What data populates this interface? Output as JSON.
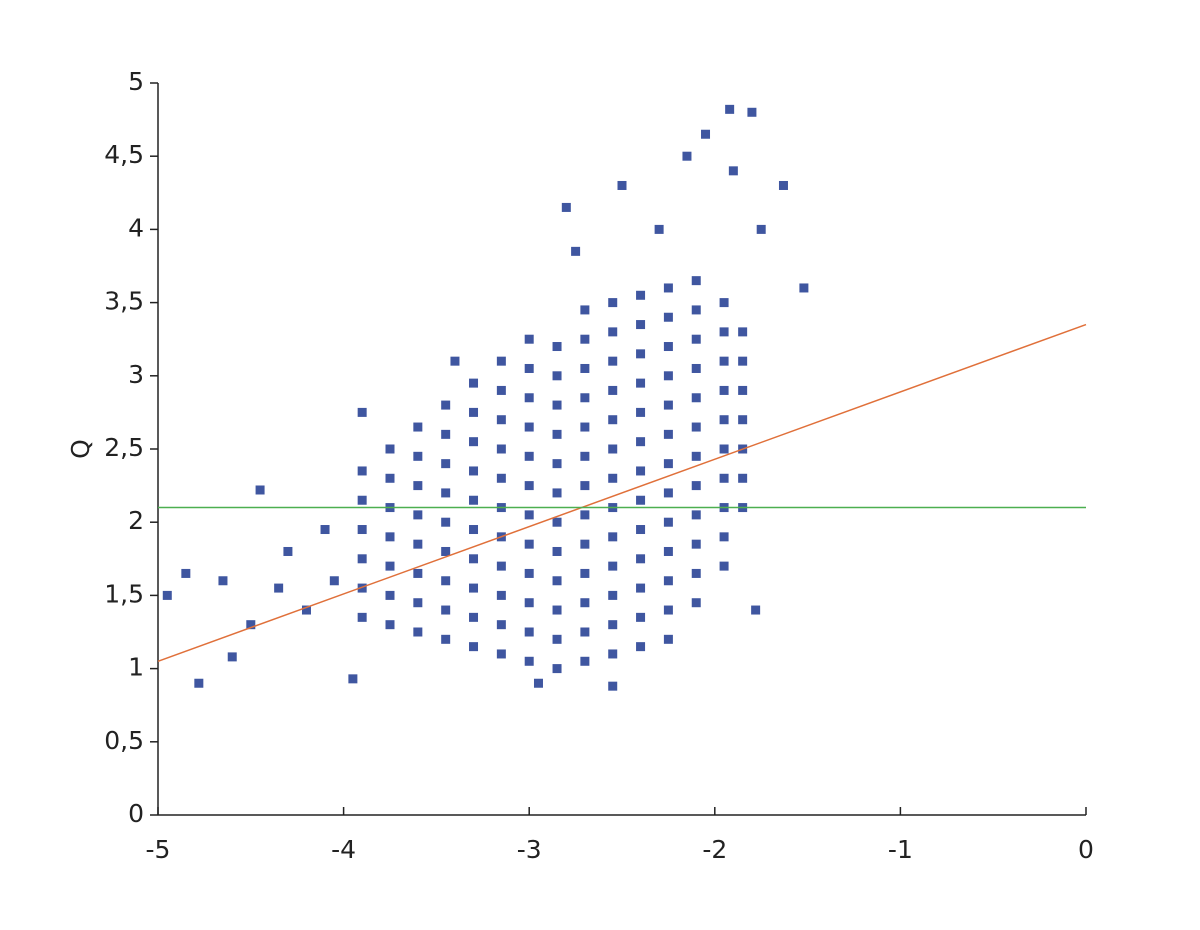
{
  "chart_data": {
    "type": "scatter",
    "y_label": "Q",
    "xlim": [
      -5,
      0
    ],
    "xticks": [
      -5,
      -4,
      -3,
      -2,
      -1,
      0
    ],
    "ylim": [
      0,
      5
    ],
    "yticks": [
      0,
      {
        "value": 0.5,
        "label": "0,5"
      },
      1,
      {
        "value": 1.5,
        "label": "1,5"
      },
      2,
      {
        "value": 2.5,
        "label": "2,5"
      },
      3,
      {
        "value": 3.5,
        "label": "3,5"
      },
      4,
      {
        "value": 4.5,
        "label": "4,5"
      },
      5
    ],
    "series": [
      {
        "type": "scatter",
        "color": "#3f56a0",
        "x": [
          -3.9,
          -3.9,
          -3.9,
          -3.9,
          -3.9,
          -3.9,
          -3.75,
          -3.75,
          -3.75,
          -3.75,
          -3.75,
          -3.75,
          -3.75,
          -3.6,
          -3.6,
          -3.6,
          -3.6,
          -3.6,
          -3.6,
          -3.6,
          -3.6,
          -3.45,
          -3.45,
          -3.45,
          -3.45,
          -3.45,
          -3.45,
          -3.45,
          -3.45,
          -3.45,
          -3.3,
          -3.3,
          -3.3,
          -3.3,
          -3.3,
          -3.3,
          -3.3,
          -3.3,
          -3.3,
          -3.3,
          -3.15,
          -3.15,
          -3.15,
          -3.15,
          -3.15,
          -3.15,
          -3.15,
          -3.15,
          -3.15,
          -3.15,
          -3.15,
          -3.0,
          -3.0,
          -3.0,
          -3.0,
          -3.0,
          -3.0,
          -3.0,
          -3.0,
          -3.0,
          -3.0,
          -3.0,
          -3.0,
          -2.85,
          -2.85,
          -2.85,
          -2.85,
          -2.85,
          -2.85,
          -2.85,
          -2.85,
          -2.85,
          -2.85,
          -2.85,
          -2.85,
          -2.7,
          -2.7,
          -2.7,
          -2.7,
          -2.7,
          -2.7,
          -2.7,
          -2.7,
          -2.7,
          -2.7,
          -2.7,
          -2.7,
          -2.7,
          -2.55,
          -2.55,
          -2.55,
          -2.55,
          -2.55,
          -2.55,
          -2.55,
          -2.55,
          -2.55,
          -2.55,
          -2.55,
          -2.55,
          -2.55,
          -2.4,
          -2.4,
          -2.4,
          -2.4,
          -2.4,
          -2.4,
          -2.4,
          -2.4,
          -2.4,
          -2.4,
          -2.4,
          -2.4,
          -2.4,
          -2.25,
          -2.25,
          -2.25,
          -2.25,
          -2.25,
          -2.25,
          -2.25,
          -2.25,
          -2.25,
          -2.25,
          -2.25,
          -2.25,
          -2.25,
          -2.1,
          -2.1,
          -2.1,
          -2.1,
          -2.1,
          -2.1,
          -2.1,
          -2.1,
          -2.1,
          -2.1,
          -2.1,
          -2.1,
          -1.95,
          -1.95,
          -1.95,
          -1.95,
          -1.95,
          -1.95,
          -1.95,
          -1.95,
          -1.95,
          -1.95,
          -1.85,
          -1.85,
          -1.85,
          -1.85,
          -1.85,
          -1.85,
          -1.85,
          -4.95,
          -4.85,
          -4.78,
          -4.6,
          -4.45,
          -4.3,
          -4.2,
          -4.5,
          -4.1,
          -3.95,
          -3.9,
          -3.4,
          -2.95,
          -2.55,
          -2.8,
          -2.5,
          -2.15,
          -2.05,
          -1.92,
          -1.8,
          -1.9,
          -1.63,
          -1.52,
          -1.78,
          -4.65,
          -4.35,
          -4.05,
          -2.75,
          -2.3,
          -1.75
        ],
        "values": [
          1.35,
          1.55,
          1.75,
          1.95,
          2.15,
          2.35,
          1.3,
          1.5,
          1.7,
          1.9,
          2.1,
          2.3,
          2.5,
          1.25,
          1.45,
          1.65,
          1.85,
          2.05,
          2.25,
          2.45,
          2.65,
          1.2,
          1.4,
          1.6,
          1.8,
          2.0,
          2.2,
          2.4,
          2.6,
          2.8,
          1.15,
          1.35,
          1.55,
          1.75,
          1.95,
          2.15,
          2.35,
          2.55,
          2.75,
          2.95,
          1.1,
          1.3,
          1.5,
          1.7,
          1.9,
          2.1,
          2.3,
          2.5,
          2.7,
          2.9,
          3.1,
          1.05,
          1.25,
          1.45,
          1.65,
          1.85,
          2.05,
          2.25,
          2.45,
          2.65,
          2.85,
          3.05,
          3.25,
          1.0,
          1.2,
          1.4,
          1.6,
          1.8,
          2.0,
          2.2,
          2.4,
          2.6,
          2.8,
          3.0,
          3.2,
          1.05,
          1.25,
          1.45,
          1.65,
          1.85,
          2.05,
          2.25,
          2.45,
          2.65,
          2.85,
          3.05,
          3.25,
          3.45,
          1.1,
          1.3,
          1.5,
          1.7,
          1.9,
          2.1,
          2.3,
          2.5,
          2.7,
          2.9,
          3.1,
          3.3,
          3.5,
          1.15,
          1.35,
          1.55,
          1.75,
          1.95,
          2.15,
          2.35,
          2.55,
          2.75,
          2.95,
          3.15,
          3.35,
          3.55,
          1.2,
          1.4,
          1.6,
          1.8,
          2.0,
          2.2,
          2.4,
          2.6,
          2.8,
          3.0,
          3.2,
          3.4,
          3.6,
          1.45,
          1.65,
          1.85,
          2.05,
          2.25,
          2.45,
          2.65,
          2.85,
          3.05,
          3.25,
          3.45,
          3.65,
          1.7,
          1.9,
          2.1,
          2.3,
          2.5,
          2.7,
          2.9,
          3.1,
          3.3,
          3.5,
          2.1,
          2.3,
          2.5,
          2.7,
          2.9,
          3.1,
          3.3,
          1.5,
          1.65,
          0.9,
          1.08,
          2.22,
          1.8,
          1.4,
          1.3,
          1.95,
          0.93,
          2.75,
          3.1,
          0.9,
          0.88,
          4.15,
          4.3,
          4.5,
          4.65,
          4.82,
          4.8,
          4.4,
          4.3,
          3.6,
          1.4,
          1.6,
          1.55,
          1.6,
          3.85,
          4.0,
          4.0
        ]
      },
      {
        "type": "line",
        "color": "#e0703a",
        "x": [
          -5,
          0
        ],
        "values": [
          1.05,
          3.35
        ]
      },
      {
        "type": "line",
        "color": "#4caf50",
        "x": [
          -5,
          0
        ],
        "values": [
          2.1,
          2.1
        ]
      }
    ]
  }
}
